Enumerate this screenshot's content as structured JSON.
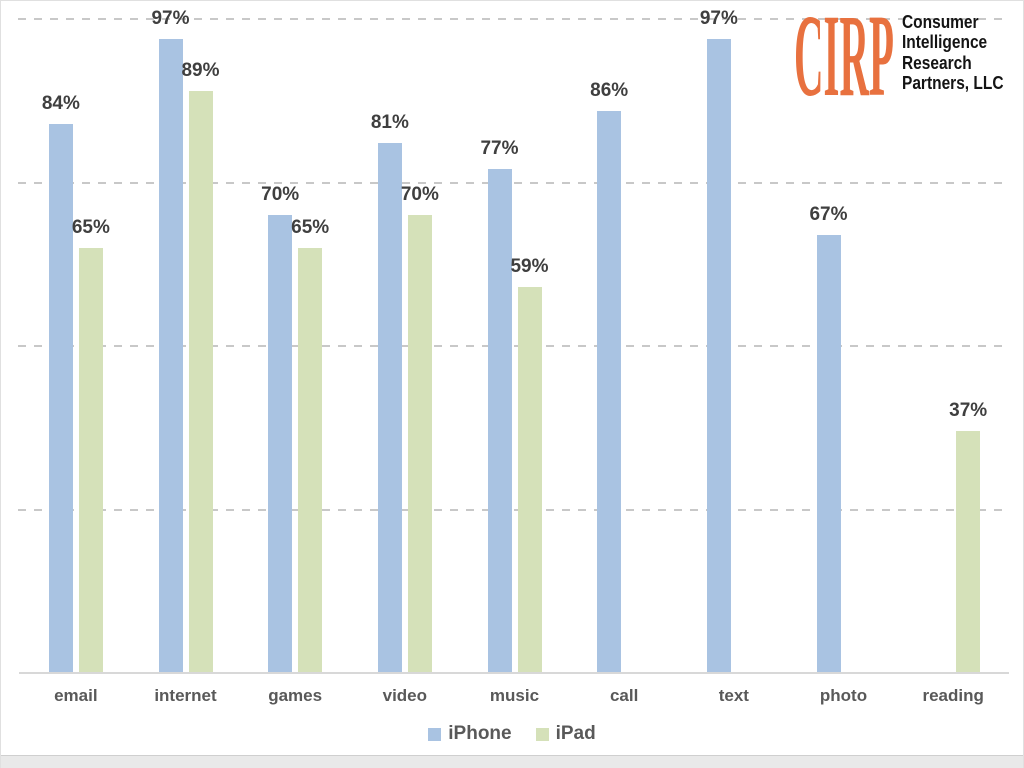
{
  "logo": {
    "brand": "CIRP",
    "brand_color": "#e8713f",
    "lines": [
      "Consumer",
      "Intelligence",
      "Research",
      "Partners, LLC"
    ]
  },
  "chart_data": {
    "type": "bar",
    "title": "",
    "categories": [
      "email",
      "internet",
      "games",
      "video",
      "music",
      "call",
      "text",
      "photo",
      "reading"
    ],
    "series": [
      {
        "name": "iPhone",
        "color": "#a9c3e2",
        "values": [
          84,
          97,
          70,
          81,
          77,
          86,
          97,
          67,
          null
        ]
      },
      {
        "name": "iPad",
        "color": "#d5e1b9",
        "values": [
          65,
          89,
          65,
          70,
          59,
          null,
          null,
          null,
          37
        ]
      }
    ],
    "value_suffix": "%",
    "xlabel": "",
    "ylabel": "",
    "ylim": [
      0,
      100
    ],
    "gridline_values": [
      25,
      50,
      75,
      100
    ],
    "grid_style": "dashed",
    "legend_position": "bottom"
  },
  "style": {
    "gridline_color": "#c8c8c8",
    "axis_line_color": "#d8d8d8",
    "value_label_color": "#3f3f3f",
    "category_label_color": "#595959"
  }
}
